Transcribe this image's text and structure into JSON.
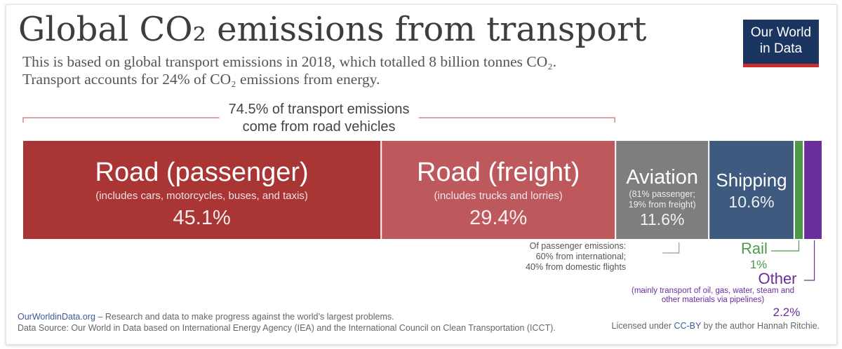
{
  "header": {
    "title": "Global CO₂ emissions from transport",
    "subtitle_line1": "This is based on global transport emissions in 2018, which totalled 8 billion tonnes CO₂.",
    "subtitle_line2": "Transport accounts for 24% of CO₂ emissions from energy.",
    "logo_line1": "Our World",
    "logo_line2": "in Data"
  },
  "footer": {
    "site": "OurWorldinData.org",
    "tagline": " – Research and data to make progress against the world’s largest problems.",
    "source": "Data Source: Our World in Data based on International Energy Agency (IEA) and the International Council on Clean Transportation (ICCT).",
    "license_pre": "Licensed under ",
    "license_link": "CC-BY",
    "license_post": " by the author Hannah Ritchie."
  },
  "chart_data": {
    "type": "bar",
    "orientation": "horizontal-stacked-100",
    "unit": "%",
    "road_bracket_lines": [
      "74.5% of transport emissions",
      "come from road vehicles"
    ],
    "segments": [
      {
        "name": "Road (passenger)",
        "note": [
          "(includes cars, motorcycles, buses, and taxis)"
        ],
        "value": 45.1,
        "label": "45.1%",
        "color": "#a93535"
      },
      {
        "name": "Road (freight)",
        "note": [
          "(includes trucks and lorries)"
        ],
        "value": 29.4,
        "label": "29.4%",
        "color": "#bd585d"
      },
      {
        "name": "Aviation",
        "note": [
          "(81% passenger;",
          "19% from freight)"
        ],
        "value": 11.6,
        "label": "11.6%",
        "color": "#7e7e7e"
      },
      {
        "name": "Shipping",
        "note": [],
        "value": 10.6,
        "label": "10.6%",
        "color": "#3e5a7e"
      },
      {
        "name": "Rail",
        "note": [],
        "value": 1.0,
        "label": "1%",
        "color": "#4e9a4a"
      },
      {
        "name": "Other",
        "note": [
          "(mainly transport of oil, gas, water, steam and",
          "other materials via pipelines)"
        ],
        "value": 2.2,
        "label": "2.2%",
        "color": "#6a2d9c"
      }
    ],
    "aviation_annotation": [
      "Of passenger emissions:",
      "60% from international;",
      "40% from domestic flights"
    ]
  }
}
